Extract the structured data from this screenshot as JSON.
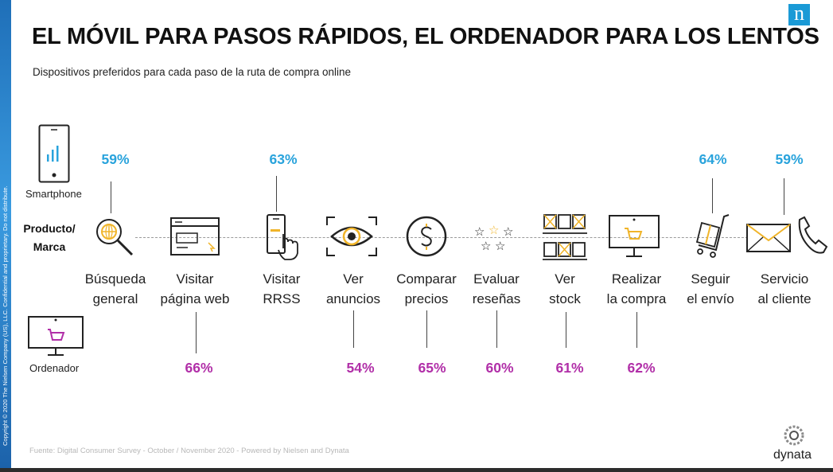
{
  "header": {
    "title": "EL MÓVIL PARA PASOS RÁPIDOS, EL ORDENADOR PARA LOS LENTOS",
    "subtitle": "Dispositivos preferidos para cada paso de la ruta de compra online",
    "brand_letter": "n"
  },
  "devices": {
    "smartphone_label": "Smartphone",
    "computer_label": "Ordenador",
    "row_label_line1": "Producto/",
    "row_label_line2": "Marca"
  },
  "colors": {
    "smartphone_accent": "#29a3dc",
    "computer_accent": "#b12fa8",
    "icon_accent": "#f0b429",
    "brand_blue": "#1a9ad6"
  },
  "steps": [
    {
      "line1": "Búsqueda",
      "line2": "general",
      "icon": "magnifier-globe-icon",
      "preferred": "smartphone",
      "value": "59%"
    },
    {
      "line1": "Visitar",
      "line2": "página web",
      "icon": "browser-window-icon",
      "preferred": "ordenador",
      "value": "66%"
    },
    {
      "line1": "Visitar",
      "line2": "RRSS",
      "icon": "phone-tap-icon",
      "preferred": "smartphone",
      "value": "63%"
    },
    {
      "line1": "Ver",
      "line2": "anuncios",
      "icon": "eye-icon",
      "preferred": "ordenador",
      "value": "54%"
    },
    {
      "line1": "Comparar",
      "line2": "precios",
      "icon": "dollar-coin-icon",
      "preferred": "ordenador",
      "value": "65%"
    },
    {
      "line1": "Evaluar",
      "line2": "reseñas",
      "icon": "stars-icon",
      "preferred": "ordenador",
      "value": "60%"
    },
    {
      "line1": "Ver",
      "line2": "stock",
      "icon": "boxes-icon",
      "preferred": "ordenador",
      "value": "61%"
    },
    {
      "line1": "Realizar",
      "line2": "la compra",
      "icon": "monitor-cart-icon",
      "preferred": "ordenador",
      "value": "62%"
    },
    {
      "line1": "Seguir",
      "line2": "el envío",
      "icon": "hand-truck-icon",
      "preferred": "smartphone",
      "value": "64%"
    },
    {
      "line1": "Servicio",
      "line2": "al cliente",
      "icon": "mail-phone-icon",
      "preferred": "smartphone",
      "value": "59%"
    }
  ],
  "footer": {
    "source": "Fuente: Digital Consumer Survey - October / November 2020 - Powered by Nielsen and Dynata",
    "copyright": "Copyright © 2020 The Nielsen Company (US), LLC. Confidential and proprietary. Do not distribute.",
    "partner": "dynata"
  }
}
